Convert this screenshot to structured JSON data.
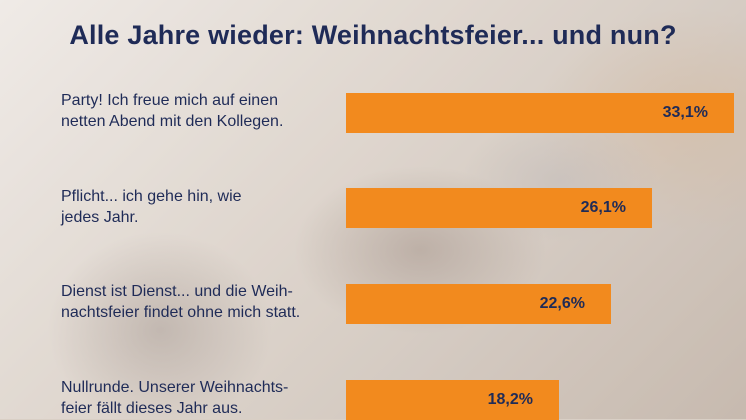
{
  "title": "Alle Jahre wieder: Weihnachtsfeier... und nun?",
  "chart_data": {
    "type": "bar",
    "orientation": "horizontal",
    "title": "Alle Jahre wieder: Weihnachtsfeier... und nun?",
    "categories": [
      [
        "Party! Ich freue mich auf einen",
        "netten Abend mit den Kollegen."
      ],
      [
        "Pflicht... ich gehe hin, wie",
        "jedes Jahr."
      ],
      [
        "Dienst ist Dienst... und die Weih-",
        "nachtsfeier findet ohne mich statt."
      ],
      [
        "Nullrunde. Unserer Weihnachts-",
        "feier fällt dieses Jahr aus."
      ]
    ],
    "values": [
      33.1,
      26.1,
      22.6,
      18.2
    ],
    "value_labels": [
      "33,1%",
      "26,1%",
      "22,6%",
      "18,2%"
    ],
    "bar_color": "#f28a1e",
    "text_color": "#1f2b57"
  }
}
